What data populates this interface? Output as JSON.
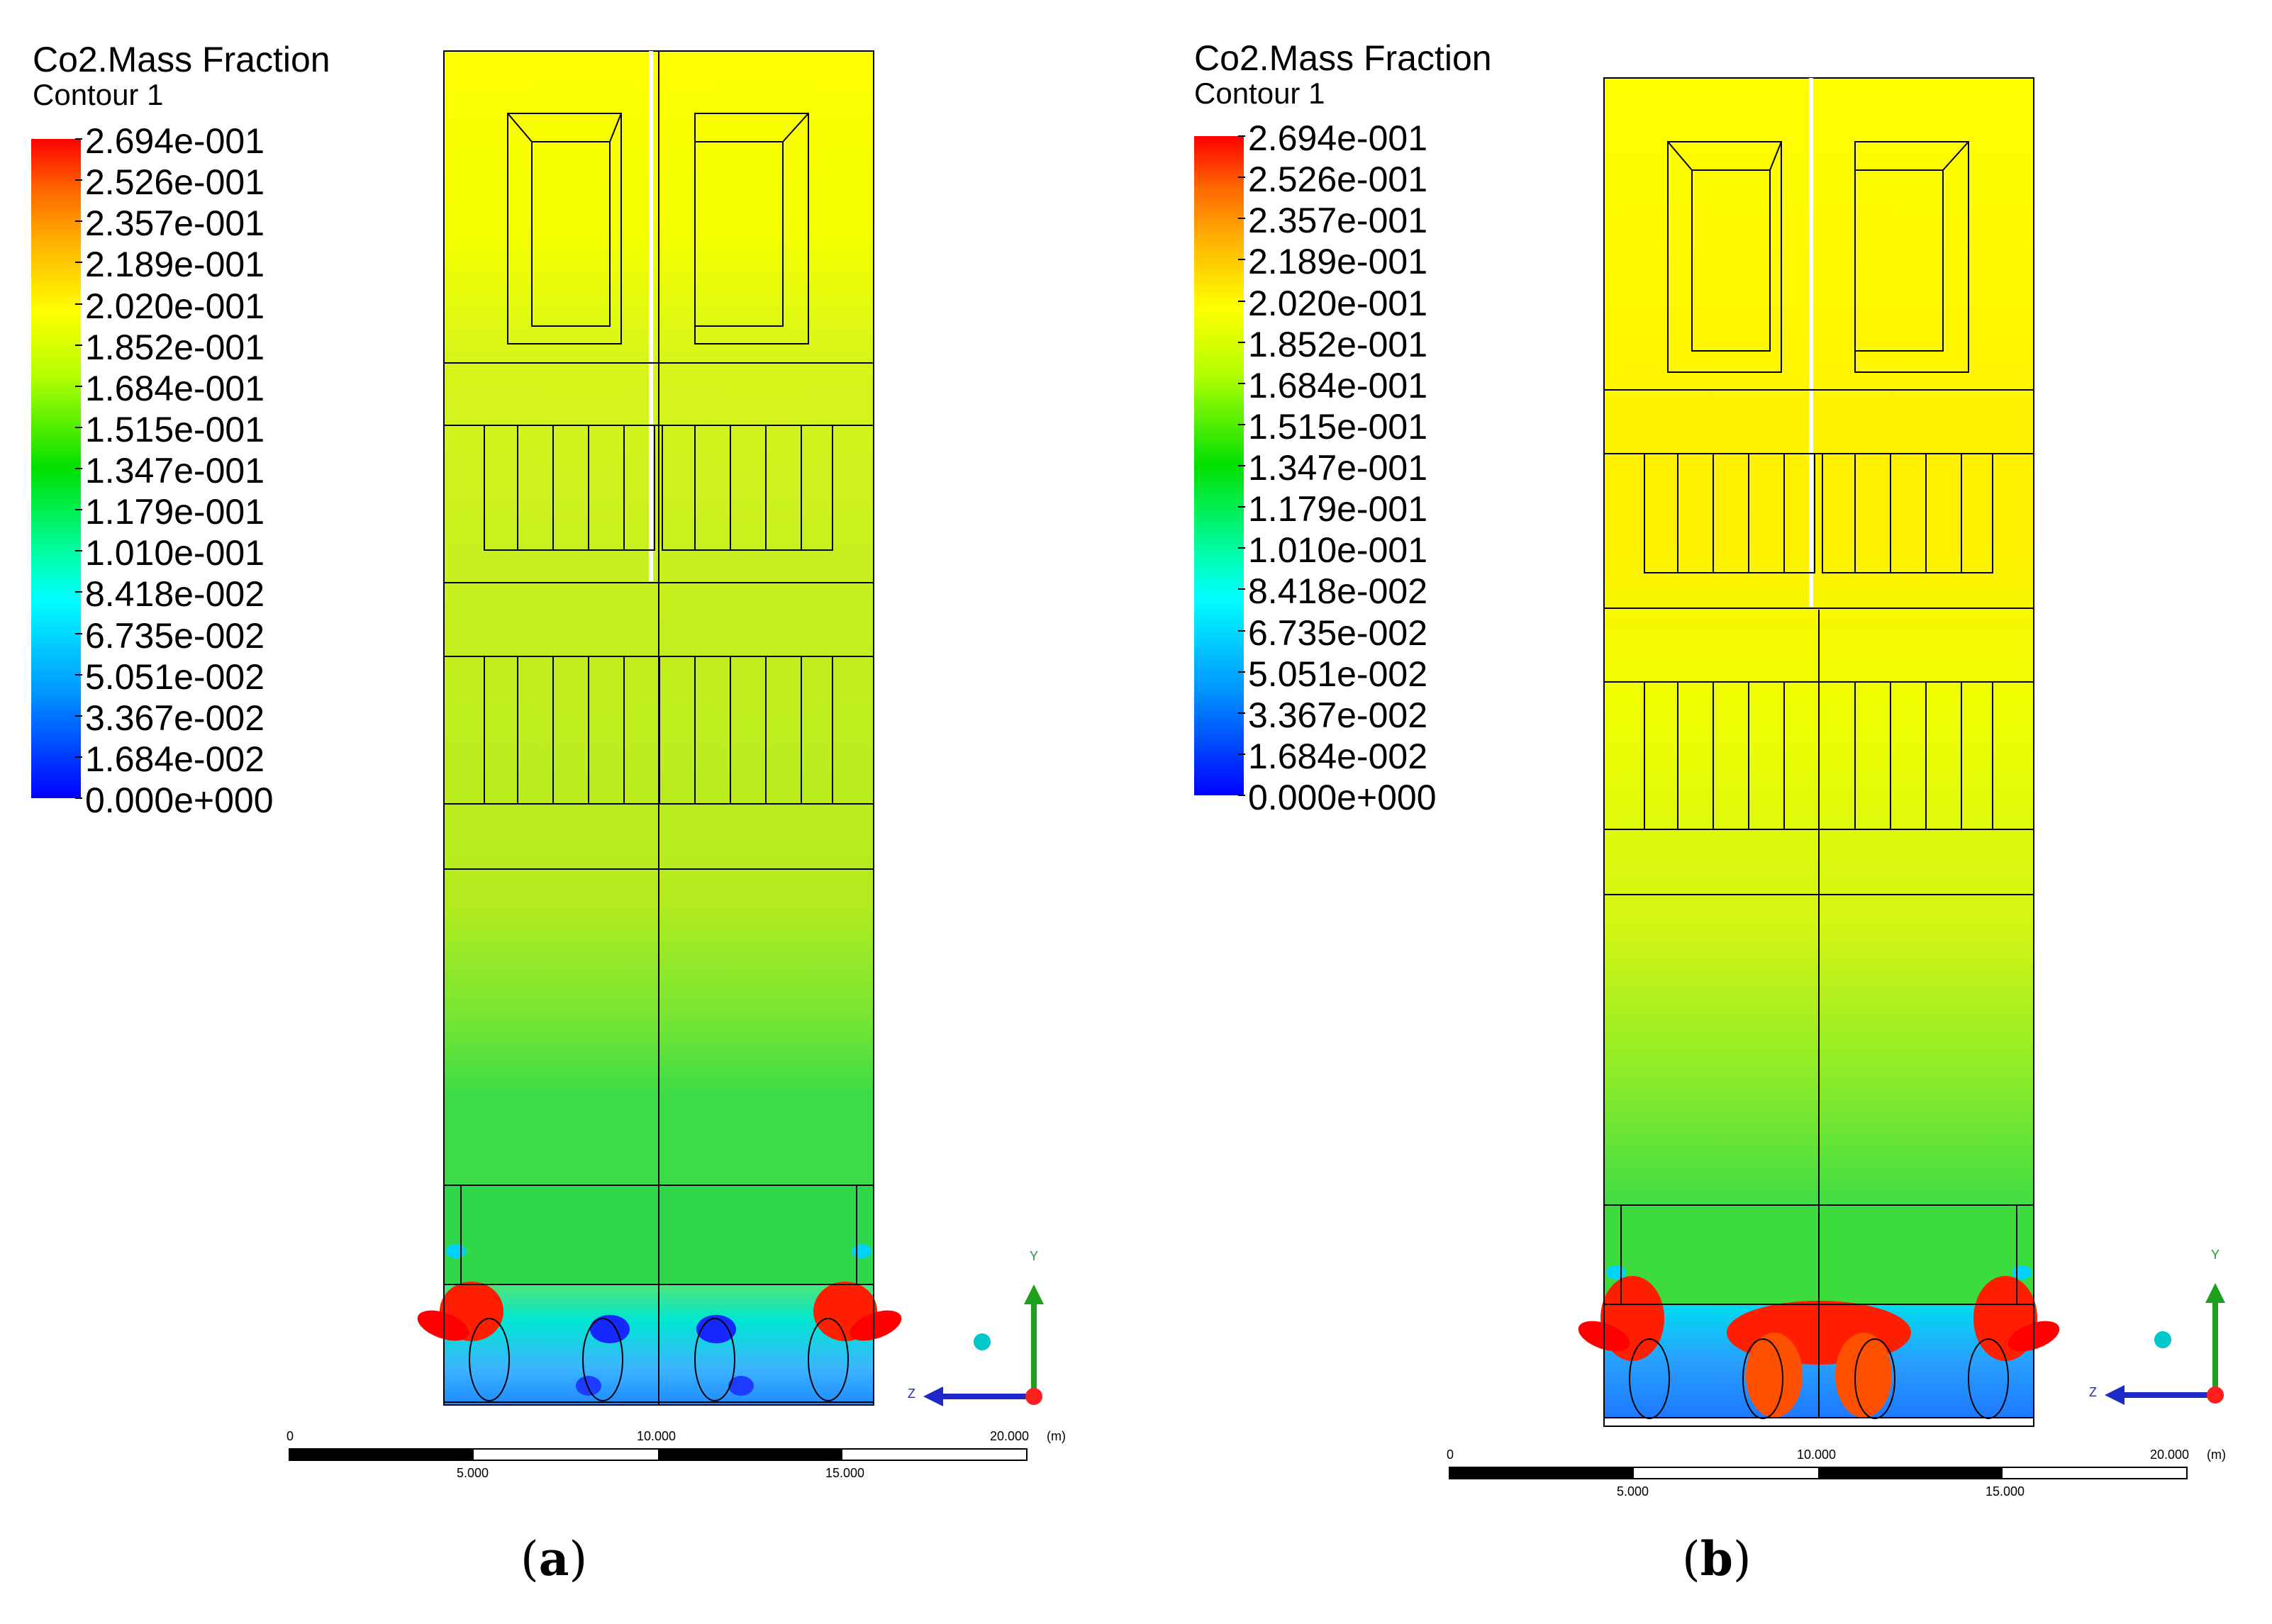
{
  "panels": [
    {
      "id": "a",
      "title": "Co2.Mass Fraction",
      "subtitle": "Contour 1",
      "caption_letter": "a",
      "scale": {
        "start": "0",
        "mid": "10.000",
        "end": "20.000",
        "unit": "(m)",
        "q1": "5.000",
        "q3": "15.000"
      },
      "axis_y": "Y",
      "axis_z": "Z"
    },
    {
      "id": "b",
      "title": "Co2.Mass Fraction",
      "subtitle": "Contour 1",
      "caption_letter": "b",
      "scale": {
        "start": "0",
        "mid": "10.000",
        "end": "20.000",
        "unit": "(m)",
        "q1": "5.000",
        "q3": "15.000"
      },
      "axis_y": "Y",
      "axis_z": "Z"
    }
  ],
  "legend_ticks": [
    "2.694e-001",
    "2.526e-001",
    "2.357e-001",
    "2.189e-001",
    "2.020e-001",
    "1.852e-001",
    "1.684e-001",
    "1.515e-001",
    "1.347e-001",
    "1.179e-001",
    "1.010e-001",
    "8.418e-002",
    "6.735e-002",
    "5.051e-002",
    "3.367e-002",
    "1.684e-002",
    "0.000e+000"
  ],
  "colors": {
    "max": "#ff0000",
    "high": "#ff8c00",
    "upper": "#ffff00",
    "mid": "#b4f000",
    "lowmid": "#3cdc3c",
    "low": "#00ffff",
    "min": "#0000ff"
  }
}
